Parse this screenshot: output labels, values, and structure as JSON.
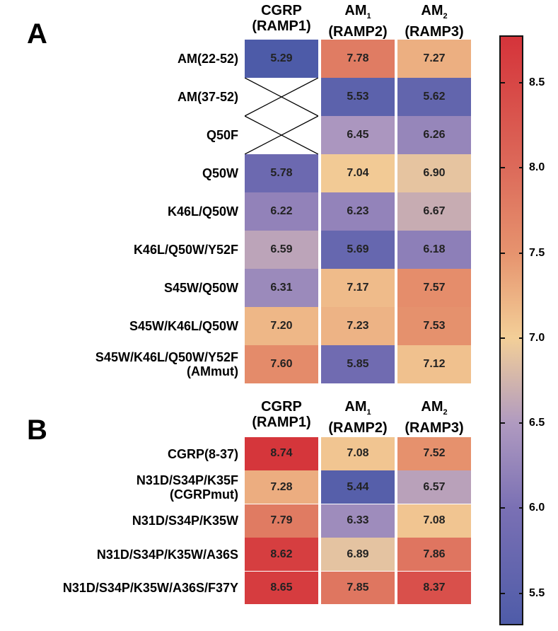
{
  "chart_data": [
    {
      "type": "heatmap",
      "panel": "A",
      "columns": [
        {
          "name": "CGRP",
          "sub": "",
          "paren": "(RAMP1)"
        },
        {
          "name": "AM",
          "sub": "1",
          "paren": "(RAMP2)"
        },
        {
          "name": "AM",
          "sub": "2",
          "paren": "(RAMP3)"
        }
      ],
      "rows": [
        {
          "label": [
            "AM(22-52)"
          ],
          "values": [
            5.29,
            7.78,
            7.27
          ]
        },
        {
          "label": [
            "AM(37-52)"
          ],
          "values": [
            null,
            5.53,
            5.62
          ]
        },
        {
          "label": [
            "Q50F"
          ],
          "values": [
            null,
            6.45,
            6.26
          ]
        },
        {
          "label": [
            "Q50W"
          ],
          "values": [
            5.78,
            7.04,
            6.9
          ]
        },
        {
          "label": [
            "K46L/Q50W"
          ],
          "values": [
            6.22,
            6.23,
            6.67
          ]
        },
        {
          "label": [
            "K46L/Q50W/Y52F"
          ],
          "values": [
            6.59,
            5.69,
            6.18
          ]
        },
        {
          "label": [
            "S45W/Q50W"
          ],
          "values": [
            6.31,
            7.17,
            7.57
          ]
        },
        {
          "label": [
            "S45W/K46L/Q50W"
          ],
          "values": [
            7.2,
            7.23,
            7.53
          ]
        },
        {
          "label": [
            "S45W/K46L/Q50W/Y52F",
            "(AMmut)"
          ],
          "values": [
            7.6,
            5.85,
            7.12
          ]
        }
      ]
    },
    {
      "type": "heatmap",
      "panel": "B",
      "columns": [
        {
          "name": "CGRP",
          "sub": "",
          "paren": "(RAMP1)"
        },
        {
          "name": "AM",
          "sub": "1",
          "paren": "(RAMP2)"
        },
        {
          "name": "AM",
          "sub": "2",
          "paren": "(RAMP3)"
        }
      ],
      "rows": [
        {
          "label": [
            "CGRP(8-37)"
          ],
          "values": [
            8.74,
            7.08,
            7.52
          ]
        },
        {
          "label": [
            "N31D/S34P/K35F",
            "(CGRPmut)"
          ],
          "values": [
            7.28,
            5.44,
            6.57
          ]
        },
        {
          "label": [
            "N31D/S34P/K35W"
          ],
          "values": [
            7.79,
            6.33,
            7.08
          ]
        },
        {
          "label": [
            "N31D/S34P/K35W/A36S"
          ],
          "values": [
            8.62,
            6.89,
            7.86
          ]
        },
        {
          "label": [
            "N31D/S34P/K35W/A36S/F37Y"
          ],
          "values": [
            8.65,
            7.85,
            8.37
          ]
        }
      ]
    }
  ],
  "colorbar": {
    "range": [
      5.32,
      8.77
    ],
    "ticks": [
      "5.5",
      "6.0",
      "6.5",
      "7.0",
      "7.5",
      "8.0",
      "8.5"
    ],
    "stops": [
      {
        "v": 5.3,
        "c": "#4d5ba8"
      },
      {
        "v": 6.0,
        "c": "#7a70b4"
      },
      {
        "v": 6.5,
        "c": "#b09ac0"
      },
      {
        "v": 7.0,
        "c": "#f3cf98"
      },
      {
        "v": 7.5,
        "c": "#e6936e"
      },
      {
        "v": 8.0,
        "c": "#dc6a5a"
      },
      {
        "v": 8.75,
        "c": "#d5353b"
      }
    ]
  }
}
